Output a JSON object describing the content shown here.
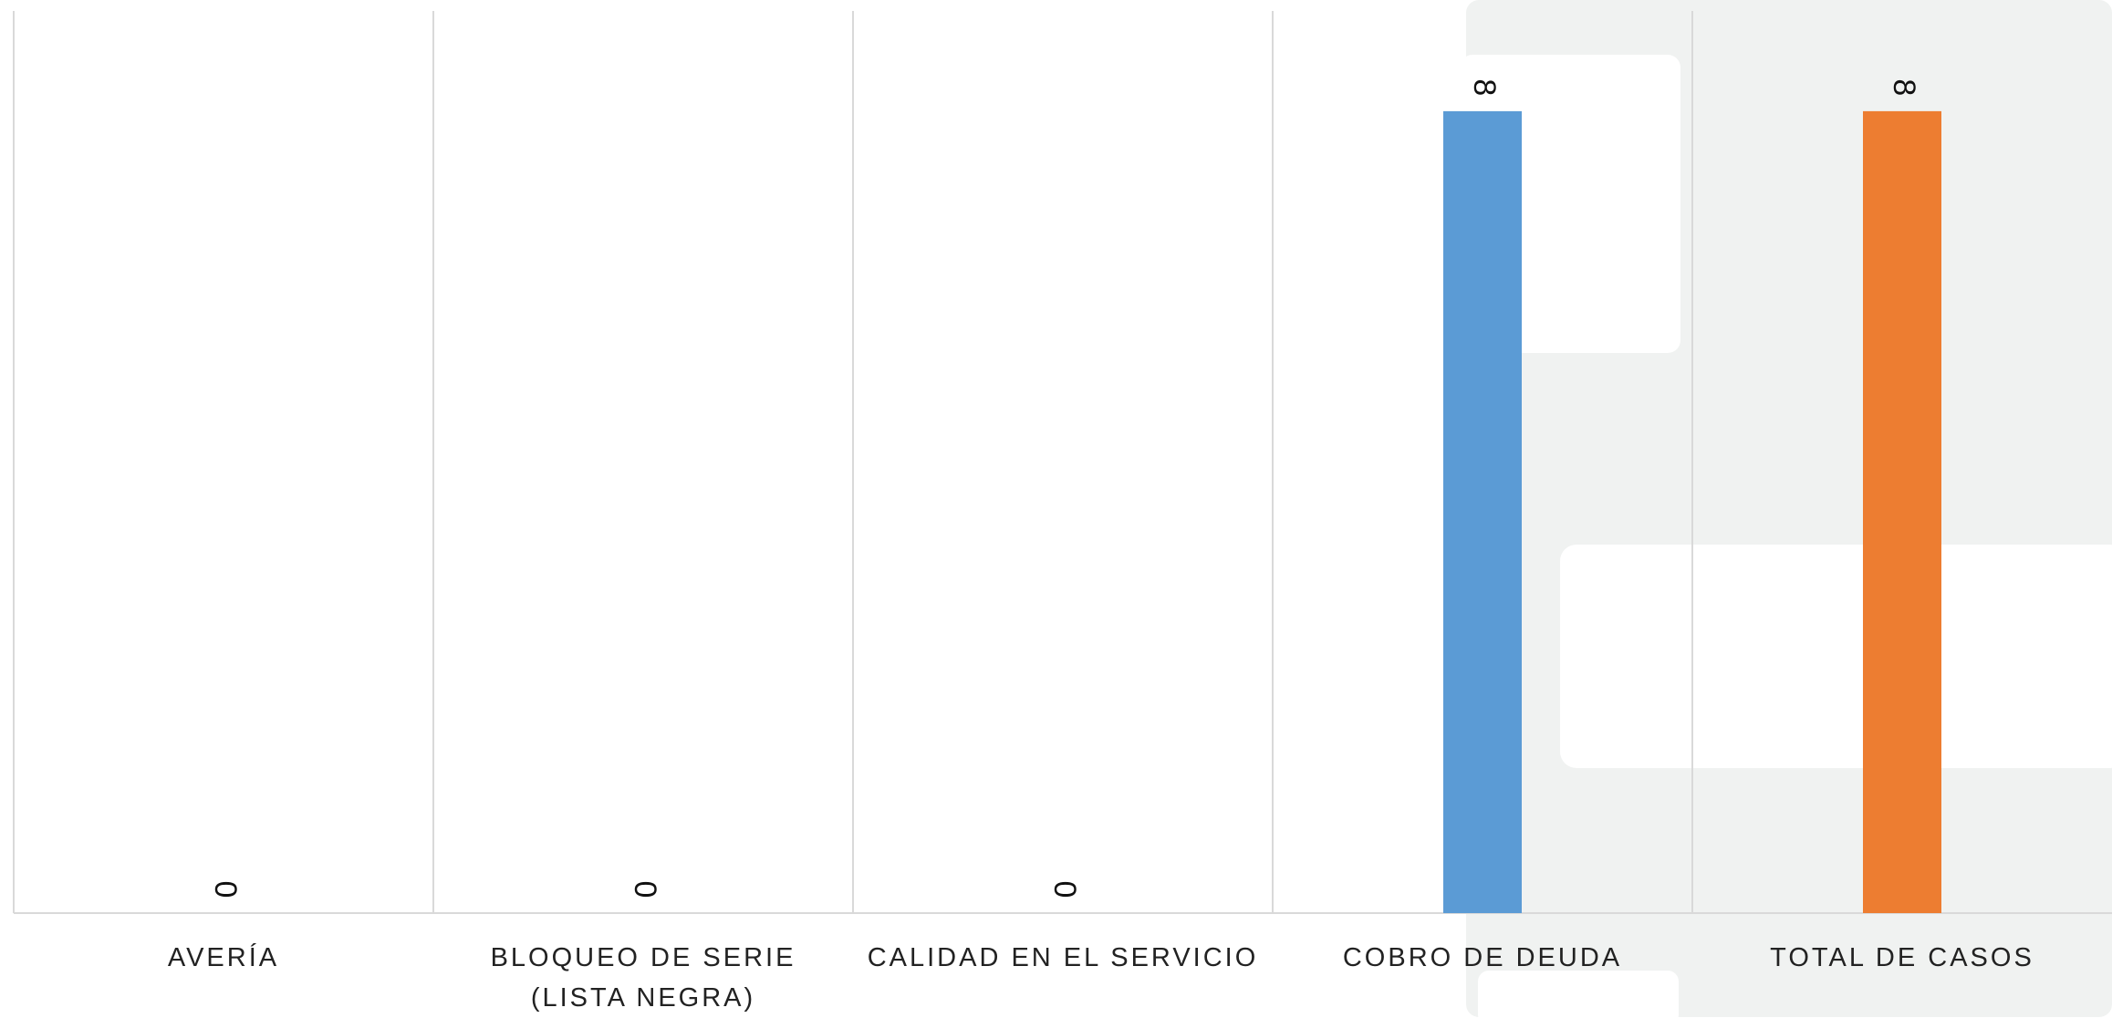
{
  "chart_data": {
    "type": "bar",
    "categories": [
      "AVERÍA",
      "BLOQUEO DE SERIE (LISTA NEGRA)",
      "CALIDAD EN EL SERVICIO",
      "COBRO DE DEUDA",
      "TOTAL DE CASOS"
    ],
    "values": [
      0,
      0,
      0,
      8,
      8
    ],
    "colors": [
      "#5b9bd5",
      "#5b9bd5",
      "#5b9bd5",
      "#5b9bd5",
      "#ed7d31"
    ],
    "ylim": [
      0,
      9
    ]
  }
}
